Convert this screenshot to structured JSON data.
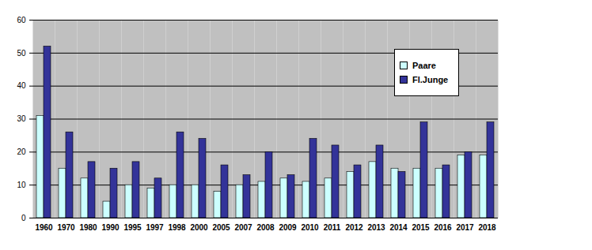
{
  "chart_data": {
    "type": "bar",
    "categories": [
      "1960",
      "1970",
      "1980",
      "1990",
      "1995",
      "1997",
      "1998",
      "2000",
      "2005",
      "2007",
      "2008",
      "2009",
      "2010",
      "2011",
      "2012",
      "2013",
      "2014",
      "2015",
      "2016",
      "2017",
      "2018"
    ],
    "series": [
      {
        "name": "Paare",
        "color": "#ccffff",
        "values": [
          31,
          15,
          12,
          5,
          10,
          9,
          10,
          10,
          8,
          10,
          11,
          12,
          11,
          12,
          14,
          17,
          15,
          15,
          15,
          19,
          19
        ]
      },
      {
        "name": "Fl.Junge",
        "color": "#333399",
        "values": [
          52,
          26,
          17,
          15,
          17,
          12,
          26,
          24,
          16,
          13,
          20,
          13,
          24,
          22,
          16,
          22,
          14,
          29,
          16,
          20,
          29
        ]
      }
    ],
    "ylim": [
      0,
      60
    ],
    "yticks": [
      0,
      10,
      20,
      30,
      40,
      50,
      60
    ],
    "grid": true,
    "legend": "top-right"
  }
}
